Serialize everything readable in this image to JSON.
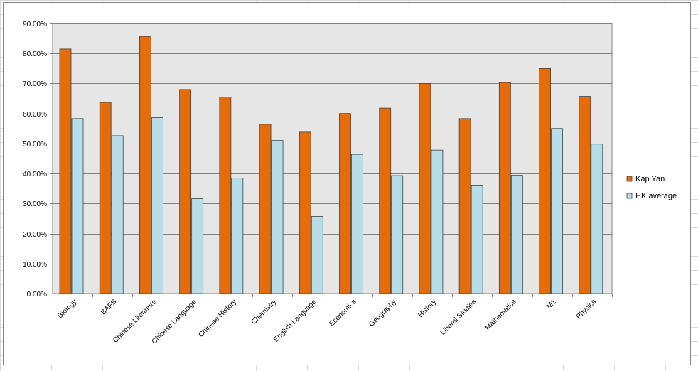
{
  "chart_data": {
    "type": "bar",
    "title": "",
    "xlabel": "",
    "ylabel": "",
    "categories": [
      "Biology",
      "BAFS",
      "Chinese Literature",
      "Chinese Language",
      "Chinese History",
      "Chemistry",
      "English Language",
      "Economics",
      "Geography",
      "History",
      "Liberal Studies",
      "Mathematics",
      "M1",
      "Physics"
    ],
    "series": [
      {
        "name": "Kap Yan",
        "color": "#e46c0a",
        "values": [
          81.5,
          63.7,
          85.7,
          68.0,
          65.5,
          56.4,
          53.8,
          60.0,
          61.8,
          70.0,
          58.3,
          70.3,
          75.0,
          65.7
        ]
      },
      {
        "name": "HK average",
        "color": "#b7dee8",
        "values": [
          58.3,
          52.6,
          58.6,
          31.6,
          38.5,
          51.0,
          25.7,
          46.4,
          39.3,
          47.8,
          35.9,
          39.4,
          55.0,
          49.8
        ]
      }
    ],
    "ylim": [
      0,
      90
    ],
    "y_ticks": [
      "0.00%",
      "10.00%",
      "20.00%",
      "30.00%",
      "40.00%",
      "50.00%",
      "60.00%",
      "70.00%",
      "80.00%",
      "90.00%"
    ],
    "grid": true,
    "legend_position": "right",
    "plot_background": "#e6e6e6"
  }
}
